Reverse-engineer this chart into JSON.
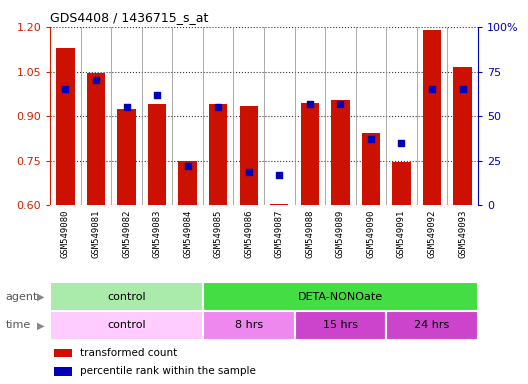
{
  "title": "GDS4408 / 1436715_s_at",
  "samples": [
    "GSM549080",
    "GSM549081",
    "GSM549082",
    "GSM549083",
    "GSM549084",
    "GSM549085",
    "GSM549086",
    "GSM549087",
    "GSM549088",
    "GSM549089",
    "GSM549090",
    "GSM549091",
    "GSM549092",
    "GSM549093"
  ],
  "transformed_count": [
    1.13,
    1.045,
    0.925,
    0.94,
    0.75,
    0.94,
    0.935,
    0.605,
    0.945,
    0.955,
    0.845,
    0.745,
    1.19,
    1.065
  ],
  "percentile_rank": [
    65,
    70,
    55,
    62,
    22,
    55,
    19,
    17,
    57,
    57,
    37,
    35,
    65,
    65
  ],
  "ylim_left": [
    0.6,
    1.2
  ],
  "ylim_right": [
    0,
    100
  ],
  "yticks_left": [
    0.6,
    0.75,
    0.9,
    1.05,
    1.2
  ],
  "yticks_right": [
    0,
    25,
    50,
    75,
    100
  ],
  "ytick_labels_right": [
    "0",
    "25",
    "50",
    "75",
    "100%"
  ],
  "bar_color": "#CC1100",
  "dot_color": "#0000BB",
  "bar_bottom": 0.6,
  "agent_groups": [
    {
      "label": "control",
      "start": 0,
      "end": 5,
      "color": "#AAEAAA"
    },
    {
      "label": "DETA-NONOate",
      "start": 5,
      "end": 14,
      "color": "#44DD44"
    }
  ],
  "time_groups": [
    {
      "label": "control",
      "start": 0,
      "end": 5,
      "color": "#FFCCFF"
    },
    {
      "label": "8 hrs",
      "start": 5,
      "end": 8,
      "color": "#EE88EE"
    },
    {
      "label": "15 hrs",
      "start": 8,
      "end": 11,
      "color": "#CC44CC"
    },
    {
      "label": "24 hrs",
      "start": 11,
      "end": 14,
      "color": "#CC44CC"
    }
  ],
  "legend_items": [
    {
      "label": "transformed count",
      "color": "#CC1100"
    },
    {
      "label": "percentile rank within the sample",
      "color": "#0000BB"
    }
  ],
  "left_axis_color": "#CC2200",
  "right_axis_color": "#0000BB",
  "xticklabel_bg": "#DDDDDD",
  "grid_color": "#333333"
}
